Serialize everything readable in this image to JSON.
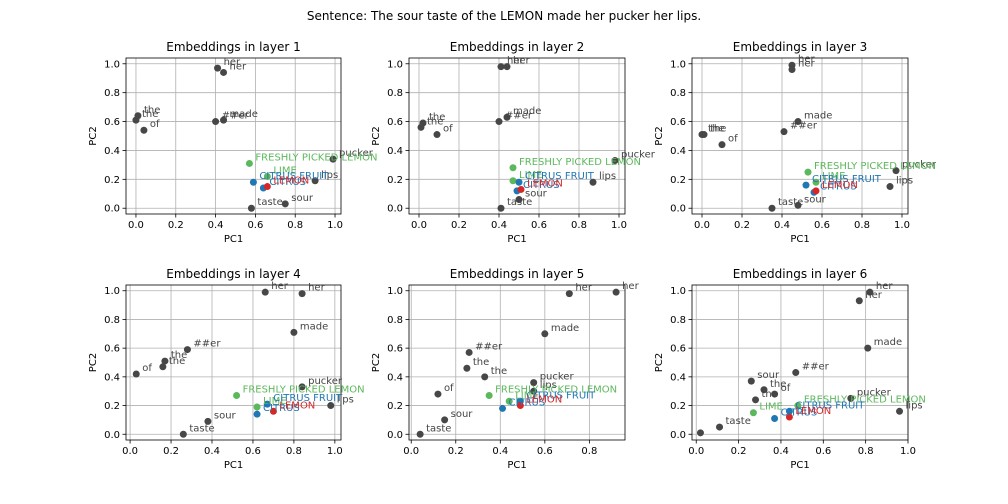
{
  "figure": {
    "title": "Sentence: The sour taste of the LEMON made her pucker her lips."
  },
  "colors": {
    "word": "#474747",
    "lemon": "#d62728",
    "citrus": "#1f77b4",
    "lime": "#5cb85c",
    "fresh": "#5cb85c",
    "word_text": "#444444",
    "lemon_text": "#d62728",
    "citrus_text": "#1f77b4",
    "lime_text": "#5cb85c",
    "fresh_text": "#5cb85c"
  },
  "chart_data": [
    {
      "type": "scatter",
      "title": "Embeddings in layer 1",
      "xlabel": "PC1",
      "ylabel": "PC2",
      "xlim": [
        -0.05,
        1.03
      ],
      "ylim": [
        -0.04,
        1.04
      ],
      "xticks": [
        0.0,
        0.2,
        0.4,
        0.6,
        0.8,
        1.0
      ],
      "yticks": [
        0.0,
        0.2,
        0.4,
        0.6,
        0.8,
        1.0
      ],
      "grid": true,
      "points": [
        {
          "label": "the",
          "x": 0.01,
          "y": 0.64,
          "kind": "word"
        },
        {
          "label": "the",
          "x": 0.0,
          "y": 0.61,
          "kind": "word"
        },
        {
          "label": "of",
          "x": 0.04,
          "y": 0.54,
          "kind": "word"
        },
        {
          "label": "her",
          "x": 0.41,
          "y": 0.97,
          "kind": "word"
        },
        {
          "label": "her",
          "x": 0.44,
          "y": 0.94,
          "kind": "word"
        },
        {
          "label": "made",
          "x": 0.44,
          "y": 0.61,
          "kind": "word"
        },
        {
          "label": "##er",
          "x": 0.4,
          "y": 0.6,
          "kind": "word"
        },
        {
          "label": "pucker",
          "x": 0.99,
          "y": 0.34,
          "kind": "word"
        },
        {
          "label": "lips",
          "x": 0.9,
          "y": 0.19,
          "kind": "word"
        },
        {
          "label": "sour",
          "x": 0.75,
          "y": 0.03,
          "kind": "word"
        },
        {
          "label": "taste",
          "x": 0.58,
          "y": 0.0,
          "kind": "word"
        },
        {
          "label": "FRESHLY PICKED LEMON",
          "x": 0.57,
          "y": 0.31,
          "kind": "fresh"
        },
        {
          "label": "LIME",
          "x": 0.66,
          "y": 0.22,
          "kind": "lime"
        },
        {
          "label": "CITRUS FRUIT",
          "x": 0.59,
          "y": 0.18,
          "kind": "citrus"
        },
        {
          "label": "CITRUS",
          "x": 0.64,
          "y": 0.14,
          "kind": "citrus"
        },
        {
          "label": "LEMON",
          "x": 0.66,
          "y": 0.15,
          "kind": "lemon"
        }
      ]
    },
    {
      "type": "scatter",
      "title": "Embeddings in layer 2",
      "xlabel": "PC1",
      "ylabel": "PC2",
      "xlim": [
        -0.05,
        1.03
      ],
      "ylim": [
        -0.04,
        1.04
      ],
      "xticks": [
        0.0,
        0.2,
        0.4,
        0.6,
        0.8,
        1.0
      ],
      "yticks": [
        0.0,
        0.2,
        0.4,
        0.6,
        0.8,
        1.0
      ],
      "grid": true,
      "points": [
        {
          "label": "the",
          "x": 0.02,
          "y": 0.59,
          "kind": "word"
        },
        {
          "label": "the",
          "x": 0.01,
          "y": 0.56,
          "kind": "word"
        },
        {
          "label": "of",
          "x": 0.09,
          "y": 0.51,
          "kind": "word"
        },
        {
          "label": "her",
          "x": 0.41,
          "y": 0.98,
          "kind": "word"
        },
        {
          "label": "her",
          "x": 0.44,
          "y": 0.98,
          "kind": "word"
        },
        {
          "label": "made",
          "x": 0.44,
          "y": 0.63,
          "kind": "word"
        },
        {
          "label": "##er",
          "x": 0.4,
          "y": 0.6,
          "kind": "word"
        },
        {
          "label": "pucker",
          "x": 0.98,
          "y": 0.33,
          "kind": "word"
        },
        {
          "label": "lips",
          "x": 0.87,
          "y": 0.18,
          "kind": "word"
        },
        {
          "label": "sour",
          "x": 0.5,
          "y": 0.06,
          "kind": "word"
        },
        {
          "label": "taste",
          "x": 0.41,
          "y": 0.0,
          "kind": "word"
        },
        {
          "label": "FRESHLY PICKED LEMON",
          "x": 0.47,
          "y": 0.28,
          "kind": "fresh"
        },
        {
          "label": "LIME",
          "x": 0.47,
          "y": 0.19,
          "kind": "lime"
        },
        {
          "label": "CITRUS FRUIT",
          "x": 0.5,
          "y": 0.18,
          "kind": "citrus"
        },
        {
          "label": "CITRUS",
          "x": 0.49,
          "y": 0.12,
          "kind": "citrus"
        },
        {
          "label": "LEMON",
          "x": 0.51,
          "y": 0.13,
          "kind": "lemon"
        }
      ]
    },
    {
      "type": "scatter",
      "title": "Embeddings in layer 3",
      "xlabel": "PC1",
      "ylabel": "PC2",
      "xlim": [
        -0.05,
        1.03
      ],
      "ylim": [
        -0.04,
        1.04
      ],
      "xticks": [
        0.0,
        0.2,
        0.4,
        0.6,
        0.8,
        1.0
      ],
      "yticks": [
        0.0,
        0.2,
        0.4,
        0.6,
        0.8,
        1.0
      ],
      "grid": true,
      "points": [
        {
          "label": "the",
          "x": 0.01,
          "y": 0.51,
          "kind": "word"
        },
        {
          "label": "the",
          "x": 0.0,
          "y": 0.51,
          "kind": "word"
        },
        {
          "label": "of",
          "x": 0.1,
          "y": 0.44,
          "kind": "word"
        },
        {
          "label": "her",
          "x": 0.45,
          "y": 0.99,
          "kind": "word"
        },
        {
          "label": "her",
          "x": 0.45,
          "y": 0.96,
          "kind": "word"
        },
        {
          "label": "made",
          "x": 0.48,
          "y": 0.6,
          "kind": "word"
        },
        {
          "label": "##er",
          "x": 0.41,
          "y": 0.53,
          "kind": "word"
        },
        {
          "label": "pucker",
          "x": 0.97,
          "y": 0.26,
          "kind": "word"
        },
        {
          "label": "lips",
          "x": 0.94,
          "y": 0.15,
          "kind": "word"
        },
        {
          "label": "sour",
          "x": 0.48,
          "y": 0.02,
          "kind": "word"
        },
        {
          "label": "taste",
          "x": 0.35,
          "y": 0.0,
          "kind": "word"
        },
        {
          "label": "FRESHLY PICKED LEMON",
          "x": 0.53,
          "y": 0.25,
          "kind": "fresh"
        },
        {
          "label": "LIME",
          "x": 0.57,
          "y": 0.18,
          "kind": "lime"
        },
        {
          "label": "CITRUS FRUIT",
          "x": 0.52,
          "y": 0.16,
          "kind": "citrus"
        },
        {
          "label": "CITRUS",
          "x": 0.56,
          "y": 0.11,
          "kind": "citrus"
        },
        {
          "label": "LEMON",
          "x": 0.57,
          "y": 0.12,
          "kind": "lemon"
        }
      ]
    },
    {
      "type": "scatter",
      "title": "Embeddings in layer 4",
      "xlabel": "PC1",
      "ylabel": "PC2",
      "xlim": [
        -0.02,
        1.03
      ],
      "ylim": [
        -0.04,
        1.04
      ],
      "xticks": [
        0.0,
        0.2,
        0.4,
        0.6,
        0.8,
        1.0
      ],
      "yticks": [
        0.0,
        0.2,
        0.4,
        0.6,
        0.8,
        1.0
      ],
      "grid": true,
      "points": [
        {
          "label": "of",
          "x": 0.03,
          "y": 0.42,
          "kind": "word"
        },
        {
          "label": "the",
          "x": 0.17,
          "y": 0.51,
          "kind": "word"
        },
        {
          "label": "the",
          "x": 0.16,
          "y": 0.47,
          "kind": "word"
        },
        {
          "label": "##er",
          "x": 0.28,
          "y": 0.59,
          "kind": "word"
        },
        {
          "label": "her",
          "x": 0.66,
          "y": 0.99,
          "kind": "word"
        },
        {
          "label": "her",
          "x": 0.84,
          "y": 0.98,
          "kind": "word"
        },
        {
          "label": "made",
          "x": 0.8,
          "y": 0.71,
          "kind": "word"
        },
        {
          "label": "pucker",
          "x": 0.84,
          "y": 0.33,
          "kind": "word"
        },
        {
          "label": "lips",
          "x": 0.98,
          "y": 0.2,
          "kind": "word"
        },
        {
          "label": "sour",
          "x": 0.38,
          "y": 0.09,
          "kind": "word"
        },
        {
          "label": "taste",
          "x": 0.26,
          "y": 0.0,
          "kind": "word"
        },
        {
          "label": "FRESHLY PICKED LEMON",
          "x": 0.52,
          "y": 0.27,
          "kind": "fresh"
        },
        {
          "label": "LIME",
          "x": 0.62,
          "y": 0.19,
          "kind": "lime"
        },
        {
          "label": "CITRUS FRUIT",
          "x": 0.67,
          "y": 0.21,
          "kind": "citrus"
        },
        {
          "label": "CITRUS",
          "x": 0.62,
          "y": 0.14,
          "kind": "citrus"
        },
        {
          "label": "LEMON",
          "x": 0.7,
          "y": 0.16,
          "kind": "lemon"
        }
      ]
    },
    {
      "type": "scatter",
      "title": "Embeddings in layer 5",
      "xlabel": "PC1",
      "ylabel": "PC2",
      "xlim": [
        -0.01,
        0.96
      ],
      "ylim": [
        -0.04,
        1.04
      ],
      "xticks": [
        0.0,
        0.2,
        0.4,
        0.6,
        0.8
      ],
      "yticks": [
        0.0,
        0.2,
        0.4,
        0.6,
        0.8,
        1.0
      ],
      "grid": true,
      "points": [
        {
          "label": "taste",
          "x": 0.04,
          "y": 0.0,
          "kind": "word"
        },
        {
          "label": "sour",
          "x": 0.15,
          "y": 0.1,
          "kind": "word"
        },
        {
          "label": "of",
          "x": 0.12,
          "y": 0.28,
          "kind": "word"
        },
        {
          "label": "the",
          "x": 0.25,
          "y": 0.46,
          "kind": "word"
        },
        {
          "label": "the",
          "x": 0.33,
          "y": 0.4,
          "kind": "word"
        },
        {
          "label": "##er",
          "x": 0.26,
          "y": 0.57,
          "kind": "word"
        },
        {
          "label": "made",
          "x": 0.6,
          "y": 0.7,
          "kind": "word"
        },
        {
          "label": "her",
          "x": 0.71,
          "y": 0.98,
          "kind": "word"
        },
        {
          "label": "her",
          "x": 0.92,
          "y": 0.99,
          "kind": "word"
        },
        {
          "label": "pucker",
          "x": 0.55,
          "y": 0.36,
          "kind": "word"
        },
        {
          "label": "lips",
          "x": 0.55,
          "y": 0.3,
          "kind": "word"
        },
        {
          "label": "FRESHLY PICKED LEMON",
          "x": 0.35,
          "y": 0.27,
          "kind": "fresh"
        },
        {
          "label": "LIME",
          "x": 0.44,
          "y": 0.23,
          "kind": "lime"
        },
        {
          "label": "CITRUS FRUIT",
          "x": 0.49,
          "y": 0.23,
          "kind": "citrus"
        },
        {
          "label": "CITRUS",
          "x": 0.41,
          "y": 0.18,
          "kind": "citrus"
        },
        {
          "label": "LEMON",
          "x": 0.49,
          "y": 0.2,
          "kind": "lemon"
        }
      ]
    },
    {
      "type": "scatter",
      "title": "Embeddings in layer 6",
      "xlabel": "PC1",
      "ylabel": "PC2",
      "xlim": [
        -0.02,
        1.0
      ],
      "ylim": [
        -0.04,
        1.04
      ],
      "xticks": [
        0.0,
        0.2,
        0.4,
        0.6,
        0.8,
        1.0
      ],
      "yticks": [
        0.0,
        0.2,
        0.4,
        0.6,
        0.8,
        1.0
      ],
      "grid": true,
      "points": [
        {
          "label": "",
          "x": 0.02,
          "y": 0.01,
          "kind": "word"
        },
        {
          "label": "taste",
          "x": 0.11,
          "y": 0.05,
          "kind": "word"
        },
        {
          "label": "sour",
          "x": 0.26,
          "y": 0.37,
          "kind": "word"
        },
        {
          "label": "the",
          "x": 0.28,
          "y": 0.24,
          "kind": "word"
        },
        {
          "label": "the",
          "x": 0.32,
          "y": 0.31,
          "kind": "word"
        },
        {
          "label": "of",
          "x": 0.37,
          "y": 0.28,
          "kind": "word"
        },
        {
          "label": "##er",
          "x": 0.47,
          "y": 0.43,
          "kind": "word"
        },
        {
          "label": "made",
          "x": 0.81,
          "y": 0.6,
          "kind": "word"
        },
        {
          "label": "her",
          "x": 0.77,
          "y": 0.93,
          "kind": "word"
        },
        {
          "label": "her",
          "x": 0.82,
          "y": 0.99,
          "kind": "word"
        },
        {
          "label": "pucker",
          "x": 0.73,
          "y": 0.25,
          "kind": "word"
        },
        {
          "label": "lips",
          "x": 0.96,
          "y": 0.16,
          "kind": "word"
        },
        {
          "label": "FRESHLY PICKED LEMON",
          "x": 0.48,
          "y": 0.2,
          "kind": "fresh"
        },
        {
          "label": "LIME",
          "x": 0.27,
          "y": 0.15,
          "kind": "lime"
        },
        {
          "label": "CITRUS FRUIT",
          "x": 0.44,
          "y": 0.16,
          "kind": "citrus"
        },
        {
          "label": "CITRUS",
          "x": 0.37,
          "y": 0.11,
          "kind": "citrus"
        },
        {
          "label": "LEMON",
          "x": 0.44,
          "y": 0.12,
          "kind": "lemon"
        }
      ]
    }
  ]
}
